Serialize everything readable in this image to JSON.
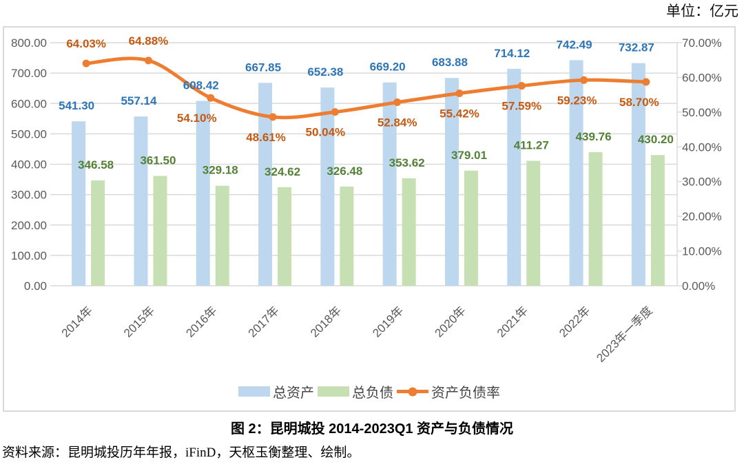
{
  "unit_label": "单位：亿元",
  "figure": {
    "title": "图 2：昆明城投 2014-2023Q1 资产与负债情况",
    "source": "资料来源：昆明城投历年年报，iFinD，天枢玉衡整理、绘制。"
  },
  "chart_data": {
    "type": "combo-bar-line",
    "categories": [
      "2014年",
      "2015年",
      "2016年",
      "2017年",
      "2018年",
      "2019年",
      "2020年",
      "2021年",
      "2022年",
      "2023年一季度"
    ],
    "series": [
      {
        "name": "总资产",
        "type": "bar",
        "axis": "left",
        "color": "#BDD7EE",
        "label_color": "#2E75B6",
        "values": [
          541.3,
          557.14,
          608.42,
          667.85,
          652.38,
          669.2,
          683.88,
          714.12,
          742.49,
          732.87
        ],
        "labels": [
          "541.30",
          "557.14",
          "608.42",
          "667.85",
          "652.38",
          "669.20",
          "683.88",
          "714.12",
          "742.49",
          "732.87"
        ]
      },
      {
        "name": "总负债",
        "type": "bar",
        "axis": "left",
        "color": "#C6E0B4",
        "label_color": "#538135",
        "values": [
          346.58,
          361.5,
          329.18,
          324.62,
          326.48,
          353.62,
          379.01,
          411.27,
          439.76,
          430.2
        ],
        "labels": [
          "346.58",
          "361.50",
          "329.18",
          "324.62",
          "326.48",
          "353.62",
          "379.01",
          "411.27",
          "439.76",
          "430.20"
        ]
      },
      {
        "name": "资产负债率",
        "type": "line",
        "axis": "right",
        "color": "#ED7D31",
        "label_color": "#C45911",
        "values": [
          64.03,
          64.88,
          54.1,
          48.61,
          50.04,
          52.84,
          55.42,
          57.59,
          59.23,
          58.7
        ],
        "labels": [
          "64.03%",
          "64.88%",
          "54.10%",
          "48.61%",
          "50.04%",
          "52.84%",
          "55.42%",
          "57.59%",
          "59.23%",
          "58.70%"
        ]
      }
    ],
    "left_axis": {
      "min": 0,
      "max": 800,
      "step": 100,
      "labels": [
        "800.00",
        "700.00",
        "600.00",
        "500.00",
        "400.00",
        "300.00",
        "200.00",
        "100.00",
        "0.00"
      ]
    },
    "right_axis": {
      "min": 0,
      "max": 70,
      "step": 10,
      "labels": [
        "70.00%",
        "60.00%",
        "50.00%",
        "40.00%",
        "30.00%",
        "20.00%",
        "10.00%",
        "0.00%"
      ]
    },
    "grid": true,
    "legend_position": "bottom",
    "axis_label_color": "#595959",
    "gridline_color": "#D9D9D9"
  }
}
